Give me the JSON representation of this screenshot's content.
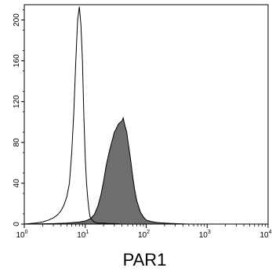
{
  "chart_data": {
    "type": "area",
    "title": "",
    "xlabel": "PAR1",
    "ylabel": "",
    "x_scale": "log",
    "xlim": [
      1,
      10000
    ],
    "ylim": [
      0,
      215
    ],
    "grid": false,
    "legend": "none",
    "x_ticks": [
      {
        "value": 1,
        "base": "10",
        "exp": "0"
      },
      {
        "value": 10,
        "base": "10",
        "exp": "1"
      },
      {
        "value": 100,
        "base": "10",
        "exp": "2"
      },
      {
        "value": 1000,
        "base": "10",
        "exp": "3"
      },
      {
        "value": 10000,
        "base": "10",
        "exp": "4"
      }
    ],
    "y_ticks": [
      {
        "value": 0,
        "label": "0"
      },
      {
        "value": 40,
        "label": "40"
      },
      {
        "value": 80,
        "label": "80"
      },
      {
        "value": 120,
        "label": "120"
      },
      {
        "value": 160,
        "label": "160"
      },
      {
        "value": 200,
        "label": "200"
      }
    ],
    "series": [
      {
        "style": "outline",
        "color": "#000000",
        "x": [
          1,
          1.5,
          2,
          2.5,
          3,
          3.5,
          4,
          4.5,
          5,
          5.5,
          6,
          6.5,
          7,
          7.5,
          8,
          8.5,
          9,
          9.5,
          10,
          10.5,
          11,
          11.5,
          12,
          13,
          14,
          15,
          16,
          18,
          20,
          25,
          30,
          40,
          60,
          100,
          200,
          500,
          1000,
          10000
        ],
        "y": [
          0,
          1,
          2,
          4,
          6,
          9,
          13,
          19,
          27,
          40,
          70,
          110,
          160,
          200,
          213,
          195,
          160,
          105,
          65,
          40,
          25,
          14,
          7,
          4,
          2,
          1.5,
          1,
          1,
          1,
          0.5,
          0.5,
          0,
          0,
          0,
          0,
          0,
          0,
          0
        ]
      },
      {
        "style": "filled",
        "color": "#6e6e6e",
        "x": [
          1,
          3,
          5,
          8,
          10,
          12,
          14,
          16,
          18,
          20,
          22,
          25,
          28,
          30,
          32,
          35,
          38,
          40,
          42,
          45,
          48,
          50,
          55,
          60,
          65,
          70,
          80,
          90,
          100,
          120,
          150,
          200,
          300,
          500,
          1000,
          10000
        ],
        "y": [
          0,
          0.5,
          1,
          2,
          3,
          5,
          9,
          17,
          28,
          42,
          57,
          72,
          83,
          90,
          93,
          98,
          100,
          101,
          104,
          96,
          90,
          82,
          65,
          47,
          33,
          23,
          12,
          7,
          4,
          2.5,
          1.5,
          1,
          0.5,
          0,
          0,
          0
        ]
      }
    ]
  }
}
